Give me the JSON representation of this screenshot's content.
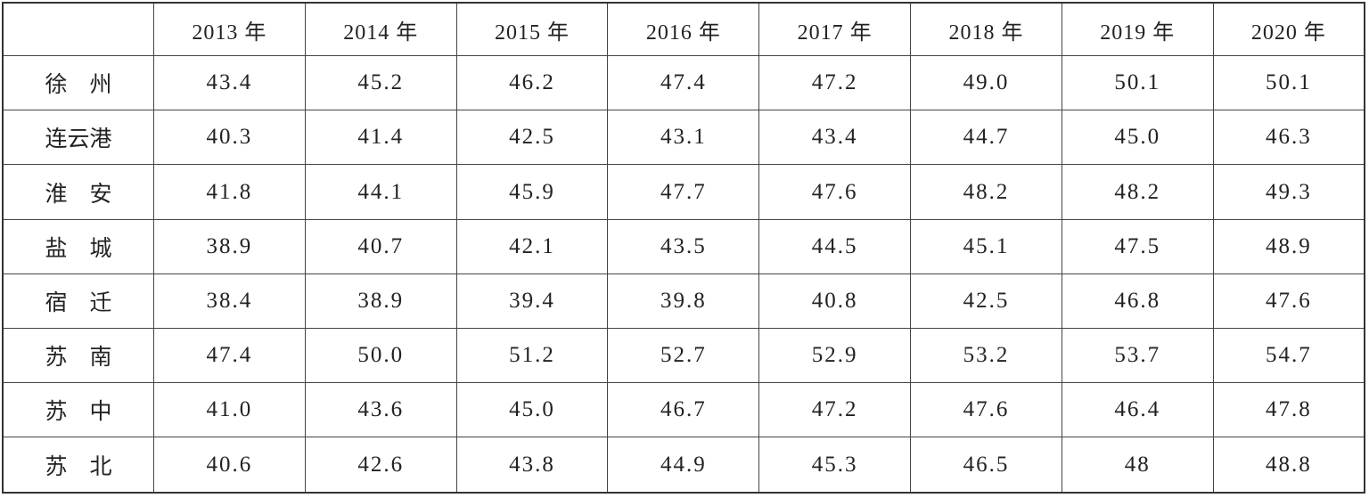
{
  "table": {
    "header": [
      "2013 年",
      "2014 年",
      "2015 年",
      "2016 年",
      "2017 年",
      "2018 年",
      "2019 年",
      "2020 年"
    ],
    "rows": [
      {
        "label": "徐　州",
        "values": [
          "43.4",
          "45.2",
          "46.2",
          "47.4",
          "47.2",
          "49.0",
          "50.1",
          "50.1"
        ]
      },
      {
        "label": "连云港",
        "values": [
          "40.3",
          "41.4",
          "42.5",
          "43.1",
          "43.4",
          "44.7",
          "45.0",
          "46.3"
        ]
      },
      {
        "label": "淮　安",
        "values": [
          "41.8",
          "44.1",
          "45.9",
          "47.7",
          "47.6",
          "48.2",
          "48.2",
          "49.3"
        ]
      },
      {
        "label": "盐　城",
        "values": [
          "38.9",
          "40.7",
          "42.1",
          "43.5",
          "44.5",
          "45.1",
          "47.5",
          "48.9"
        ]
      },
      {
        "label": "宿　迁",
        "values": [
          "38.4",
          "38.9",
          "39.4",
          "39.8",
          "40.8",
          "42.5",
          "46.8",
          "47.6"
        ]
      },
      {
        "label": "苏　南",
        "values": [
          "47.4",
          "50.0",
          "51.2",
          "52.7",
          "52.9",
          "53.2",
          "53.7",
          "54.7"
        ]
      },
      {
        "label": "苏　中",
        "values": [
          "41.0",
          "43.6",
          "45.0",
          "46.7",
          "47.2",
          "47.6",
          "46.4",
          "47.8"
        ]
      },
      {
        "label": "苏　北",
        "values": [
          "40.6",
          "42.6",
          "43.8",
          "44.9",
          "45.3",
          "46.5",
          "48",
          "48.8"
        ]
      }
    ]
  }
}
